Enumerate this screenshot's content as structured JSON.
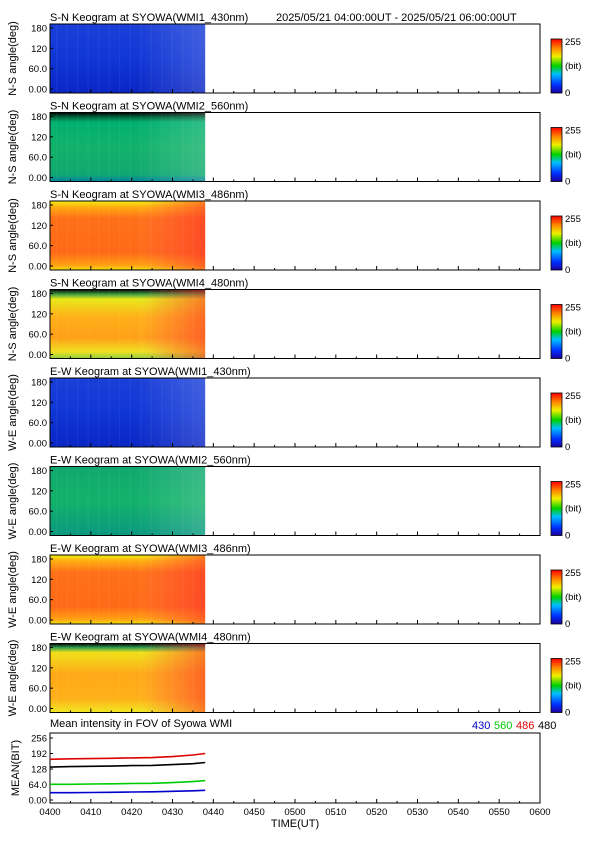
{
  "header": {
    "time_range": "2025/05/21 04:00:00UT - 2025/05/21 06:00:00UT"
  },
  "colorbar": {
    "max_label": "255",
    "unit_label": "(bit)",
    "min_label": "0"
  },
  "keogram_y_ticks": [
    "180",
    "120",
    "60.0",
    "0.00"
  ],
  "panels": [
    {
      "title": "S-N Keogram at SYOWA(WMI1_430nm)",
      "ylabel": "N-S angle(deg)",
      "style": "blue"
    },
    {
      "title": "S-N Keogram at SYOWA(WMI2_560nm)",
      "ylabel": "N-S angle(deg)",
      "style": "green_sn"
    },
    {
      "title": "S-N Keogram at SYOWA(WMI3_486nm)",
      "ylabel": "N-S angle(deg)",
      "style": "red"
    },
    {
      "title": "S-N Keogram at SYOWA(WMI4_480nm)",
      "ylabel": "N-S angle(deg)",
      "style": "yellow_sn"
    },
    {
      "title": "E-W Keogram at SYOWA(WMI1_430nm)",
      "ylabel": "W-E angle(deg)",
      "style": "blue"
    },
    {
      "title": "E-W Keogram at SYOWA(WMI2_560nm)",
      "ylabel": "W-E angle(deg)",
      "style": "green_ew"
    },
    {
      "title": "E-W Keogram at SYOWA(WMI3_486nm)",
      "ylabel": "W-E angle(deg)",
      "style": "red"
    },
    {
      "title": "E-W Keogram at SYOWA(WMI4_480nm)",
      "ylabel": "W-E angle(deg)",
      "style": "yellow_ew"
    }
  ],
  "mean_panel": {
    "title": "Mean intensity in FOV of Syowa WMI",
    "ylabel": "MEAN(BIT)",
    "y_ticks": [
      "256",
      "192",
      "128",
      "64.0",
      "0.00"
    ],
    "legend": [
      {
        "label": "430",
        "color": "#0000cc"
      },
      {
        "label": "560",
        "color": "#00cc00"
      },
      {
        "label": "486",
        "color": "#dd0000"
      },
      {
        "label": "480",
        "color": "#000000"
      }
    ]
  },
  "x_axis": {
    "label": "TIME(UT)",
    "ticks": [
      "0400",
      "0410",
      "0420",
      "0430",
      "0440",
      "0450",
      "0500",
      "0510",
      "0520",
      "0530",
      "0540",
      "0550",
      "0600"
    ]
  },
  "chart_data": {
    "type": "line",
    "title": "Mean intensity in FOV of Syowa WMI",
    "xlabel": "TIME(UT)",
    "ylabel": "MEAN(BIT)",
    "xlim": [
      0,
      120
    ],
    "ylim": [
      0,
      256
    ],
    "x": [
      0,
      5,
      10,
      15,
      20,
      25,
      30,
      35,
      38
    ],
    "series": [
      {
        "name": "430",
        "color": "#0000cc",
        "values": [
          30,
          30,
          31,
          32,
          33,
          34,
          36,
          38,
          40
        ]
      },
      {
        "name": "560",
        "color": "#00cc00",
        "values": [
          65,
          65,
          66,
          67,
          68,
          69,
          72,
          76,
          80
        ]
      },
      {
        "name": "486",
        "color": "#dd0000",
        "values": [
          168,
          170,
          171,
          172,
          174,
          175,
          179,
          186,
          192
        ]
      },
      {
        "name": "480",
        "color": "#000000",
        "values": [
          136,
          138,
          139,
          140,
          142,
          143,
          146,
          150,
          155
        ]
      }
    ]
  }
}
